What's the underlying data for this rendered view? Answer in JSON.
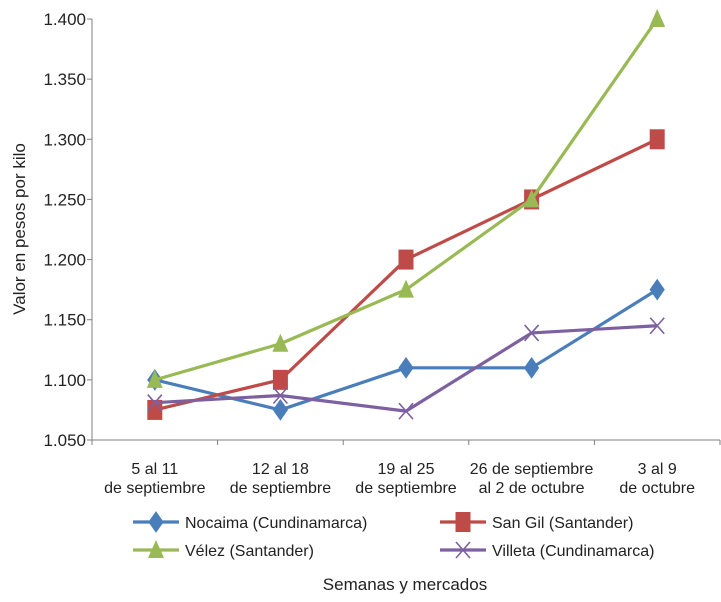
{
  "chart_data": {
    "type": "line",
    "title": "",
    "xlabel": "Semanas y mercados",
    "ylabel": "Valor en pesos por kilo",
    "categories": [
      [
        "5 al 11",
        "de septiembre"
      ],
      [
        "12 al 18",
        "de septiembre"
      ],
      [
        "19 al 25",
        "de septiembre"
      ],
      [
        "26 de septiembre",
        "al 2 de octubre"
      ],
      [
        "3 al 9",
        "de octubre"
      ]
    ],
    "ylim": [
      1050,
      1400
    ],
    "yticks": [
      1050,
      1100,
      1150,
      1200,
      1250,
      1300,
      1350,
      1400
    ],
    "ytick_labels": [
      "1.050",
      "1.100",
      "1.150",
      "1.200",
      "1.250",
      "1.300",
      "1.350",
      "1.400"
    ],
    "grid": false,
    "legend_position": "bottom",
    "series": [
      {
        "name": "Nocaima (Cundinamarca)",
        "color": "#4a7ebb",
        "marker": "diamond",
        "values": [
          1100,
          1075,
          1110,
          1110,
          1175
        ]
      },
      {
        "name": "San Gil (Santander)",
        "color": "#be4b48",
        "marker": "square",
        "values": [
          1075,
          1100,
          1200,
          1250,
          1300
        ]
      },
      {
        "name": "Vélez (Santander)",
        "color": "#98b954",
        "marker": "triangle",
        "values": [
          1100,
          1130,
          1175,
          1250,
          1400
        ]
      },
      {
        "name": "Villeta (Cundinamarca)",
        "color": "#7d60a0",
        "marker": "x",
        "values": [
          1081,
          1087,
          1074,
          1139,
          1145
        ]
      }
    ]
  }
}
